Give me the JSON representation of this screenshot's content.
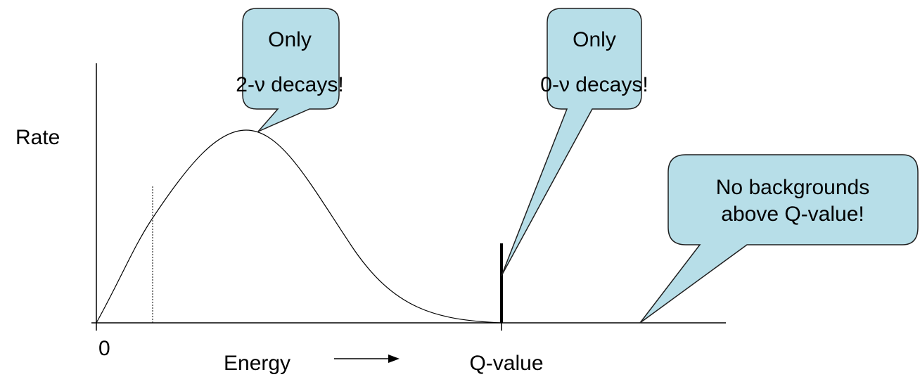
{
  "axis": {
    "y_label": "Rate",
    "origin": "0",
    "x_label": "Energy",
    "q_label": "Q-value"
  },
  "callouts": [
    {
      "lines": [
        "Only",
        "2-ν decays!"
      ]
    },
    {
      "lines": [
        "Only",
        "0-ν decays!"
      ]
    },
    {
      "lines": [
        "No backgrounds",
        "above Q-value!"
      ]
    }
  ]
}
